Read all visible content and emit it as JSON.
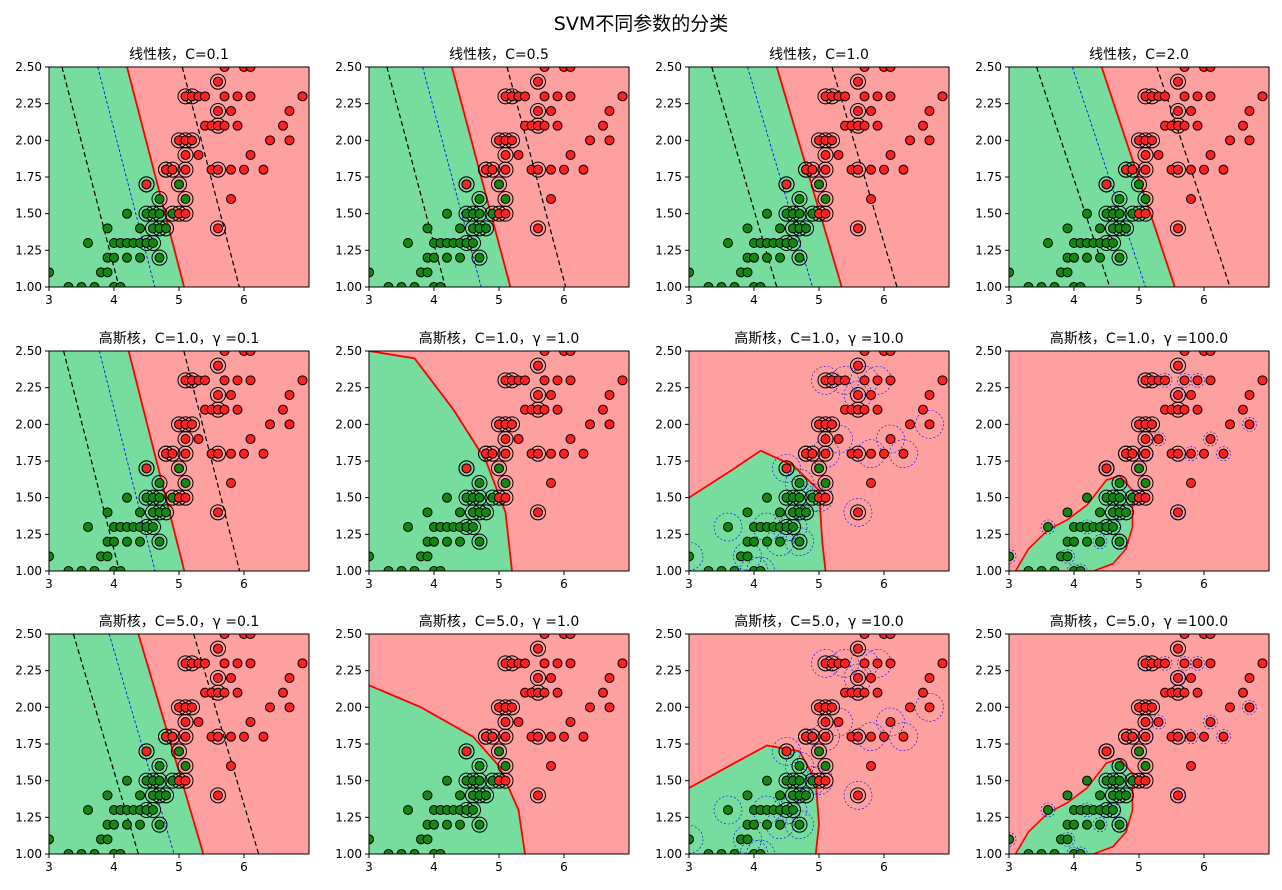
{
  "figure": {
    "title": "SVM不同参数的分类"
  },
  "colors": {
    "green_region": "#77DD9F",
    "red_region": "#FFA0A0",
    "class0_point": "#118811",
    "class1_point": "#FF2020",
    "decision_boundary": "#FF0000",
    "margin_line": "#000000",
    "inner_contour": "#0000FF"
  },
  "chart_data": [
    {
      "type": "scatter",
      "title": "线性核，C=0.1",
      "kernel": "linear",
      "C": 0.1,
      "xlim": [
        3,
        7
      ],
      "ylim": [
        1.0,
        2.5
      ],
      "x_ticks": [
        "3",
        "4",
        "5",
        "6"
      ],
      "y_ticks": [
        "1.00",
        "1.25",
        "1.50",
        "1.75",
        "2.00",
        "2.25",
        "2.50"
      ],
      "boundary": {
        "m": 4.1,
        "b": 2.4
      }
    },
    {
      "type": "scatter",
      "title": "线性核，C=0.5",
      "kernel": "linear",
      "C": 0.5,
      "xlim": [
        3,
        7
      ],
      "ylim": [
        1.0,
        2.5
      ],
      "x_ticks": [
        "3",
        "4",
        "5",
        "6"
      ],
      "y_ticks": [
        "1.00",
        "1.25",
        "1.50",
        "1.75",
        "2.00",
        "2.25",
        "2.50"
      ],
      "boundary": {
        "m": 4.0,
        "b": 2.55
      }
    },
    {
      "type": "scatter",
      "title": "线性核，C=1.0",
      "kernel": "linear",
      "C": 1.0,
      "xlim": [
        3,
        7
      ],
      "ylim": [
        1.0,
        2.5
      ],
      "x_ticks": [
        "3",
        "4",
        "5",
        "6"
      ],
      "y_ticks": [
        "1.00",
        "1.25",
        "1.50",
        "1.75",
        "2.00",
        "2.25",
        "2.50"
      ],
      "boundary": {
        "m": 3.6,
        "b": 2.7
      }
    },
    {
      "type": "scatter",
      "title": "线性核，C=2.0",
      "kernel": "linear",
      "C": 2.0,
      "xlim": [
        3,
        7
      ],
      "ylim": [
        1.0,
        2.5
      ],
      "x_ticks": [
        "3",
        "4",
        "5",
        "6"
      ],
      "y_ticks": [
        "1.00",
        "1.25",
        "1.50",
        "1.75",
        "2.00",
        "2.25",
        "2.50"
      ],
      "boundary": {
        "m": 3.2,
        "b": 2.85
      }
    },
    {
      "type": "scatter",
      "title": "高斯核，C=1.0，γ =0.1",
      "kernel": "rbf",
      "C": 1.0,
      "gamma": 0.1,
      "xlim": [
        3,
        7
      ],
      "ylim": [
        1.0,
        2.5
      ],
      "x_ticks": [
        "3",
        "4",
        "5",
        "6"
      ],
      "y_ticks": [
        "1.00",
        "1.25",
        "1.50",
        "1.75",
        "2.00",
        "2.25",
        "2.50"
      ],
      "boundary": {
        "m": 4.2,
        "b": 2.45
      }
    },
    {
      "type": "scatter",
      "title": "高斯核，C=1.0，γ =1.0",
      "kernel": "rbf",
      "C": 1.0,
      "gamma": 1.0,
      "xlim": [
        3,
        7
      ],
      "ylim": [
        1.0,
        2.5
      ],
      "x_ticks": [
        "3",
        "4",
        "5",
        "6"
      ],
      "y_ticks": [
        "1.00",
        "1.25",
        "1.50",
        "1.75",
        "2.00",
        "2.25",
        "2.50"
      ]
    },
    {
      "type": "scatter",
      "title": "高斯核，C=1.0，γ =10.0",
      "kernel": "rbf",
      "C": 1.0,
      "gamma": 10.0,
      "xlim": [
        3,
        7
      ],
      "ylim": [
        1.0,
        2.5
      ],
      "x_ticks": [
        "3",
        "4",
        "5",
        "6"
      ],
      "y_ticks": [
        "1.00",
        "1.25",
        "1.50",
        "1.75",
        "2.00",
        "2.25",
        "2.50"
      ]
    },
    {
      "type": "scatter",
      "title": "高斯核，C=1.0，γ =100.0",
      "kernel": "rbf",
      "C": 1.0,
      "gamma": 100.0,
      "xlim": [
        3,
        7
      ],
      "ylim": [
        1.0,
        2.5
      ],
      "x_ticks": [
        "3",
        "4",
        "5",
        "6"
      ],
      "y_ticks": [
        "1.00",
        "1.25",
        "1.50",
        "1.75",
        "2.00",
        "2.25",
        "2.50"
      ]
    },
    {
      "type": "scatter",
      "title": "高斯核，C=5.0，γ =0.1",
      "kernel": "rbf",
      "C": 5.0,
      "gamma": 0.1,
      "xlim": [
        3,
        7
      ],
      "ylim": [
        1.0,
        2.5
      ],
      "x_ticks": [
        "3",
        "4",
        "5",
        "6"
      ],
      "y_ticks": [
        "1.00",
        "1.25",
        "1.50",
        "1.75",
        "2.00",
        "2.25",
        "2.50"
      ],
      "boundary": {
        "m": 3.6,
        "b": 2.75
      }
    },
    {
      "type": "scatter",
      "title": "高斯核，C=5.0，γ =1.0",
      "kernel": "rbf",
      "C": 5.0,
      "gamma": 1.0,
      "xlim": [
        3,
        7
      ],
      "ylim": [
        1.0,
        2.5
      ],
      "x_ticks": [
        "3",
        "4",
        "5",
        "6"
      ],
      "y_ticks": [
        "1.00",
        "1.25",
        "1.50",
        "1.75",
        "2.00",
        "2.25",
        "2.50"
      ]
    },
    {
      "type": "scatter",
      "title": "高斯核，C=5.0，γ =10.0",
      "kernel": "rbf",
      "C": 5.0,
      "gamma": 10.0,
      "xlim": [
        3,
        7
      ],
      "ylim": [
        1.0,
        2.5
      ],
      "x_ticks": [
        "3",
        "4",
        "5",
        "6"
      ],
      "y_ticks": [
        "1.00",
        "1.25",
        "1.50",
        "1.75",
        "2.00",
        "2.25",
        "2.50"
      ]
    },
    {
      "type": "scatter",
      "title": "高斯核，C=5.0，γ =100.0",
      "kernel": "rbf",
      "C": 5.0,
      "gamma": 100.0,
      "xlim": [
        3,
        7
      ],
      "ylim": [
        1.0,
        2.5
      ],
      "x_ticks": [
        "3",
        "4",
        "5",
        "6"
      ],
      "y_ticks": [
        "1.00",
        "1.25",
        "1.50",
        "1.75",
        "2.00",
        "2.25",
        "2.50"
      ]
    }
  ],
  "points": {
    "class0": [
      [
        3.0,
        1.1
      ],
      [
        3.3,
        1.0
      ],
      [
        3.5,
        1.0
      ],
      [
        3.6,
        1.3
      ],
      [
        3.7,
        1.0
      ],
      [
        3.8,
        1.1
      ],
      [
        3.9,
        1.1
      ],
      [
        3.9,
        1.2
      ],
      [
        3.9,
        1.4
      ],
      [
        4.0,
        1.0
      ],
      [
        4.0,
        1.2
      ],
      [
        4.0,
        1.3
      ],
      [
        4.1,
        1.0
      ],
      [
        4.1,
        1.3
      ],
      [
        4.2,
        1.2
      ],
      [
        4.2,
        1.3
      ],
      [
        4.2,
        1.5
      ],
      [
        4.3,
        1.3
      ],
      [
        4.4,
        1.2
      ],
      [
        4.4,
        1.3
      ],
      [
        4.4,
        1.4
      ],
      [
        4.5,
        1.3
      ],
      [
        4.5,
        1.5
      ],
      [
        4.5,
        1.7
      ],
      [
        4.6,
        1.3
      ],
      [
        4.6,
        1.4
      ],
      [
        4.6,
        1.5
      ],
      [
        4.7,
        1.2
      ],
      [
        4.7,
        1.4
      ],
      [
        4.7,
        1.5
      ],
      [
        4.7,
        1.6
      ],
      [
        4.8,
        1.4
      ],
      [
        4.8,
        1.8
      ],
      [
        4.9,
        1.5
      ],
      [
        5.0,
        1.7
      ],
      [
        5.1,
        1.6
      ]
    ],
    "class1": [
      [
        4.5,
        1.7
      ],
      [
        4.8,
        1.8
      ],
      [
        4.9,
        1.8
      ],
      [
        5.0,
        1.5
      ],
      [
        5.0,
        2.0
      ],
      [
        5.1,
        1.5
      ],
      [
        5.1,
        1.8
      ],
      [
        5.1,
        1.9
      ],
      [
        5.1,
        2.0
      ],
      [
        5.1,
        2.3
      ],
      [
        5.2,
        2.0
      ],
      [
        5.2,
        2.3
      ],
      [
        5.3,
        1.9
      ],
      [
        5.3,
        2.3
      ],
      [
        5.4,
        2.1
      ],
      [
        5.4,
        2.3
      ],
      [
        5.5,
        1.8
      ],
      [
        5.5,
        2.1
      ],
      [
        5.6,
        1.4
      ],
      [
        5.6,
        1.8
      ],
      [
        5.6,
        2.1
      ],
      [
        5.6,
        2.2
      ],
      [
        5.6,
        2.4
      ],
      [
        5.7,
        2.1
      ],
      [
        5.7,
        2.3
      ],
      [
        5.7,
        2.5
      ],
      [
        5.8,
        1.6
      ],
      [
        5.8,
        1.8
      ],
      [
        5.8,
        2.2
      ],
      [
        5.9,
        2.1
      ],
      [
        5.9,
        2.3
      ],
      [
        6.0,
        1.8
      ],
      [
        6.0,
        2.5
      ],
      [
        6.1,
        1.9
      ],
      [
        6.1,
        2.3
      ],
      [
        6.1,
        2.5
      ],
      [
        6.3,
        1.8
      ],
      [
        6.4,
        2.0
      ],
      [
        6.6,
        2.1
      ],
      [
        6.7,
        2.0
      ],
      [
        6.7,
        2.2
      ],
      [
        6.9,
        2.3
      ]
    ]
  }
}
